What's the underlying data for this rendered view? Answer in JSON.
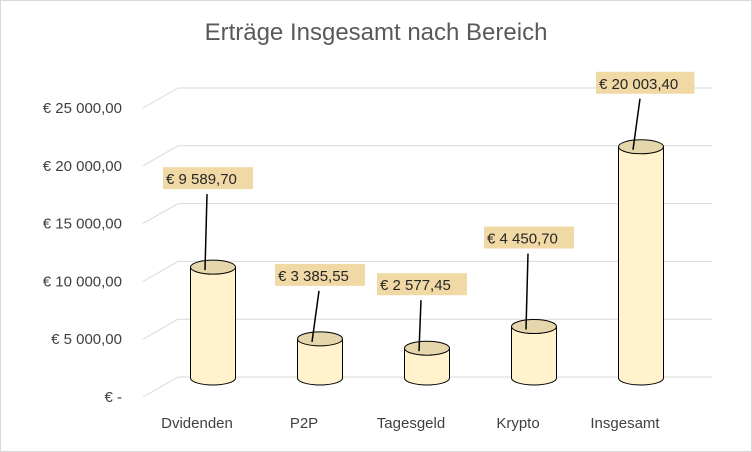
{
  "chart_data": {
    "type": "bar",
    "style": "3d-cylinder",
    "title": "Erträge Insgesamt nach Bereich",
    "categories": [
      "Dvidenden",
      "P2P",
      "Tagesgeld",
      "Krypto",
      "Insgesamt"
    ],
    "values": [
      9589.7,
      3385.55,
      2577.45,
      4450.7,
      20003.4
    ],
    "data_labels": [
      "€ 9 589,70",
      "€ 3 385,55",
      "€ 2 577,45",
      "€ 4 450,70",
      "€ 20 003,40"
    ],
    "y_ticks": [
      0,
      5000,
      10000,
      15000,
      20000,
      25000
    ],
    "y_tick_labels": [
      "€ -",
      "€ 5 000,00",
      "€ 10 000,00",
      "€ 15 000,00",
      "€ 20 000,00",
      "€ 25 000,00"
    ],
    "ylim": [
      0,
      25000
    ],
    "grid": true,
    "legend": "none",
    "colors": {
      "bar_fill": "#fff2cc",
      "bar_top": "#e5d6ac",
      "bar_stroke": "#000000",
      "label_bg": "#f1d9a6",
      "grid": "#d9d9d9",
      "title": "#595959"
    }
  }
}
